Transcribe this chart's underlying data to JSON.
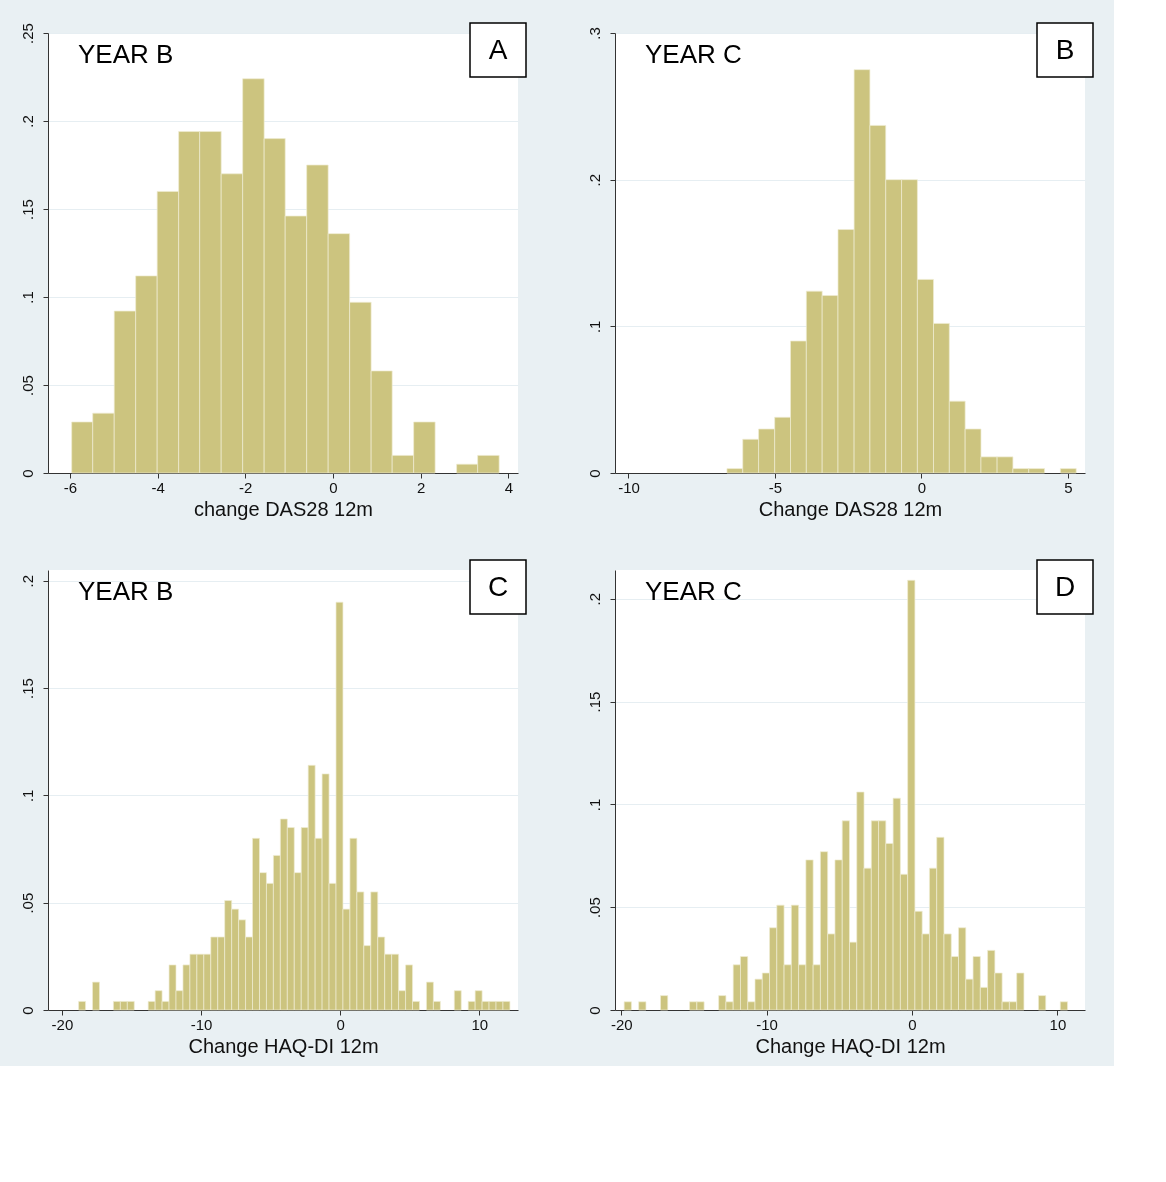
{
  "chart_data": [
    {
      "type": "histogram",
      "title": "YEAR B",
      "xlabel": "change DAS28 12m",
      "annotations": [
        "A"
      ],
      "color": "#ccc47f",
      "bins": [
        -5.96,
        -5.48,
        -4.99,
        -4.5,
        -4.01,
        -3.52,
        -3.04,
        -2.55,
        -2.06,
        -1.57,
        -1.09,
        -0.6,
        -0.11,
        0.38,
        0.87,
        1.35,
        1.84,
        2.33,
        2.82,
        3.3,
        3.79
      ],
      "values": [
        0.029,
        0.034,
        0.092,
        0.112,
        0.16,
        0.194,
        0.194,
        0.17,
        0.224,
        0.19,
        0.146,
        0.175,
        0.136,
        0.097,
        0.058,
        0.01,
        0.029,
        0,
        0.005,
        0.01
      ],
      "xlim": [
        -6.5,
        4.22
      ],
      "xticks": [
        -6,
        -4,
        -2,
        0,
        2,
        4
      ],
      "ylim": [
        0,
        0.25
      ],
      "yticks": [
        {
          "value": 0,
          "label": "0"
        },
        {
          "value": 0.05,
          "label": ".05"
        },
        {
          "value": 0.1,
          "label": ".1"
        },
        {
          "value": 0.15,
          "label": ".15"
        },
        {
          "value": 0.2,
          "label": ".2"
        },
        {
          "value": 0.25,
          "label": ".25"
        }
      ],
      "grid": "y"
    },
    {
      "type": "histogram",
      "title": "YEAR C",
      "xlabel": "Change DAS28 12m",
      "annotations": [
        "B"
      ],
      "color": "#ccc47f",
      "bins": [
        -6.64,
        -6.1,
        -5.56,
        -5.01,
        -4.47,
        -3.93,
        -3.39,
        -2.85,
        -2.3,
        -1.76,
        -1.22,
        -0.68,
        -0.14,
        0.41,
        0.95,
        1.49,
        2.03,
        2.58,
        3.12,
        3.66,
        4.2,
        4.74,
        5.28
      ],
      "values": [
        0.003,
        0.023,
        0.03,
        0.038,
        0.09,
        0.124,
        0.121,
        0.166,
        0.275,
        0.237,
        0.2,
        0.2,
        0.132,
        0.102,
        0.049,
        0.03,
        0.011,
        0.011,
        0.003,
        0.003,
        0,
        0.003
      ],
      "xlim": [
        -10.46,
        5.58
      ],
      "xticks": [
        -10,
        -5,
        0,
        5
      ],
      "ylim": [
        0,
        0.3
      ],
      "yticks": [
        {
          "value": 0,
          "label": "0"
        },
        {
          "value": 0.1,
          "label": ".1"
        },
        {
          "value": 0.2,
          "label": ".2"
        },
        {
          "value": 0.3,
          "label": ".3"
        }
      ],
      "grid": "y"
    },
    {
      "type": "histogram",
      "title": "YEAR B",
      "xlabel": "Change HAQ-DI 12m",
      "annotations": [
        "C"
      ],
      "color": "#ccc47f",
      "bins": [
        -18.8,
        -18.3,
        -17.8,
        -17.3,
        -16.8,
        -16.3,
        -15.8,
        -15.3,
        -14.8,
        -14.3,
        -13.8,
        -13.3,
        -12.8,
        -12.3,
        -11.8,
        -11.3,
        -10.8,
        -10.3,
        -9.8,
        -9.3,
        -8.8,
        -8.3,
        -7.8,
        -7.3,
        -6.8,
        -6.3,
        -5.8,
        -5.3,
        -4.8,
        -4.3,
        -3.8,
        -3.3,
        -2.8,
        -2.3,
        -1.8,
        -1.3,
        -0.8,
        -0.3,
        0.2,
        0.7,
        1.2,
        1.7,
        2.2,
        2.7,
        3.2,
        3.7,
        4.2,
        4.7,
        5.2,
        5.7,
        6.2,
        6.7,
        7.2,
        7.7,
        8.2,
        8.7,
        9.2,
        9.7,
        10.2,
        10.7,
        11.2,
        11.7,
        12.2
      ],
      "values": [
        0.004,
        0,
        0.013,
        0,
        0,
        0.004,
        0.004,
        0.004,
        0,
        0,
        0.004,
        0.009,
        0.004,
        0.021,
        0.009,
        0.021,
        0.026,
        0.026,
        0.026,
        0.034,
        0.034,
        0.051,
        0.047,
        0.042,
        0.034,
        0.08,
        0.064,
        0.059,
        0.072,
        0.089,
        0.085,
        0.064,
        0.085,
        0.114,
        0.08,
        0.11,
        0.059,
        0.19,
        0.047,
        0.08,
        0.055,
        0.03,
        0.055,
        0.034,
        0.026,
        0.026,
        0.009,
        0.021,
        0.004,
        0,
        0.013,
        0.004,
        0,
        0,
        0.009,
        0,
        0.004,
        0.009,
        0.004,
        0.004,
        0.004,
        0.004
      ],
      "xlim": [
        -21,
        12.78
      ],
      "xticks": [
        -20,
        -10,
        0,
        10
      ],
      "ylim": [
        0,
        0.205
      ],
      "yticks": [
        {
          "value": 0,
          "label": "0"
        },
        {
          "value": 0.05,
          "label": ".05"
        },
        {
          "value": 0.1,
          "label": ".1"
        },
        {
          "value": 0.15,
          "label": ".15"
        },
        {
          "value": 0.2,
          "label": ".2"
        }
      ],
      "grid": "y"
    },
    {
      "type": "histogram",
      "title": "YEAR C",
      "xlabel": "Change HAQ-DI 12m",
      "annotations": [
        "D"
      ],
      "color": "#ccc47f",
      "bins": [
        -19.8,
        -19.3,
        -18.8,
        -18.3,
        -17.8,
        -17.3,
        -16.8,
        -16.3,
        -15.8,
        -15.3,
        -14.8,
        -14.3,
        -13.8,
        -13.3,
        -12.8,
        -12.3,
        -11.8,
        -11.3,
        -10.8,
        -10.3,
        -9.8,
        -9.3,
        -8.8,
        -8.3,
        -7.8,
        -7.3,
        -6.8,
        -6.3,
        -5.8,
        -5.3,
        -4.8,
        -4.3,
        -3.8,
        -3.3,
        -2.8,
        -2.3,
        -1.8,
        -1.3,
        -0.8,
        -0.3,
        0.2,
        0.7,
        1.2,
        1.7,
        2.2,
        2.7,
        3.2,
        3.7,
        4.2,
        4.7,
        5.2,
        5.7,
        6.2,
        6.7,
        7.2,
        7.7,
        8.2,
        8.7,
        9.2,
        9.7,
        10.2,
        10.7
      ],
      "values": [
        0.004,
        0,
        0.004,
        0,
        0,
        0.007,
        0,
        0,
        0,
        0.004,
        0.004,
        0,
        0,
        0.007,
        0.004,
        0.022,
        0.026,
        0.004,
        0.015,
        0.018,
        0.04,
        0.051,
        0.022,
        0.051,
        0.022,
        0.073,
        0.022,
        0.077,
        0.037,
        0.073,
        0.092,
        0.033,
        0.106,
        0.069,
        0.092,
        0.092,
        0.081,
        0.103,
        0.066,
        0.209,
        0.048,
        0.037,
        0.069,
        0.084,
        0.037,
        0.026,
        0.04,
        0.015,
        0.026,
        0.011,
        0.029,
        0.018,
        0.004,
        0.004,
        0.018,
        0,
        0,
        0.007,
        0,
        0,
        0.004
      ],
      "xlim": [
        -20.43,
        11.9
      ],
      "xticks": [
        -20,
        -10,
        0,
        10
      ],
      "ylim": [
        0,
        0.214
      ],
      "yticks": [
        {
          "value": 0,
          "label": "0"
        },
        {
          "value": 0.05,
          "label": ".05"
        },
        {
          "value": 0.1,
          "label": ".1"
        },
        {
          "value": 0.15,
          "label": ".15"
        },
        {
          "value": 0.2,
          "label": ".2"
        }
      ],
      "grid": "y"
    }
  ]
}
